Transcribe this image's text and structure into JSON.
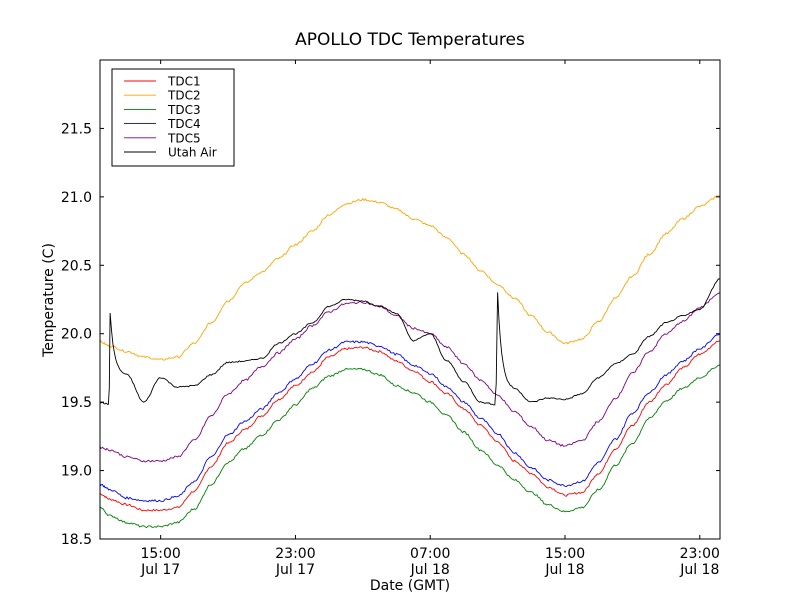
{
  "chart_data": {
    "type": "line",
    "title": "APOLLO TDC Temperatures",
    "xlabel": "Date (GMT)",
    "ylabel": "Temperature (C)",
    "x_unit": "hours since 15:00 Jul 17 (GMT)",
    "xlim": [
      -3.6,
      33.2
    ],
    "ylim": [
      18.5,
      22.0
    ],
    "yticks": [
      18.5,
      19.0,
      19.5,
      20.0,
      20.5,
      21.0,
      21.5
    ],
    "ytick_labels": [
      "18.5",
      "19.0",
      "19.5",
      "20.0",
      "20.5",
      "21.0",
      "21.5"
    ],
    "xticks": [
      0,
      8,
      16,
      24,
      32
    ],
    "xtick_labels": [
      [
        "15:00",
        "Jul 17"
      ],
      [
        "23:00",
        "Jul 17"
      ],
      [
        "07:00",
        "Jul 18"
      ],
      [
        "15:00",
        "Jul 18"
      ],
      [
        "23:00",
        "Jul 18"
      ]
    ],
    "grid": false,
    "legend_position": "top-left",
    "x": [
      -3.6,
      -3,
      -2,
      -1,
      0,
      1,
      2,
      3,
      4,
      5,
      6,
      7,
      8,
      9,
      10,
      11,
      12,
      13,
      14,
      15,
      16,
      17,
      18,
      19,
      20,
      21,
      22,
      23,
      24,
      25,
      26,
      27,
      28,
      29,
      30,
      31,
      32,
      33.2
    ],
    "series": [
      {
        "name": "TDC1",
        "color": "#ff0000",
        "values": [
          18.83,
          18.79,
          18.75,
          18.71,
          18.71,
          18.73,
          18.85,
          19.03,
          19.2,
          19.3,
          19.4,
          19.52,
          19.62,
          19.72,
          19.83,
          19.89,
          19.9,
          19.87,
          19.8,
          19.73,
          19.65,
          19.56,
          19.45,
          19.33,
          19.21,
          19.07,
          18.98,
          18.88,
          18.82,
          18.84,
          18.98,
          19.16,
          19.33,
          19.5,
          19.63,
          19.75,
          19.85,
          19.95
        ]
      },
      {
        "name": "TDC2",
        "color": "#ffa500",
        "values": [
          19.94,
          19.91,
          19.87,
          19.83,
          19.81,
          19.83,
          19.93,
          20.08,
          20.24,
          20.37,
          20.45,
          20.55,
          20.65,
          20.75,
          20.87,
          20.95,
          20.98,
          20.96,
          20.91,
          20.84,
          20.79,
          20.7,
          20.58,
          20.46,
          20.36,
          20.26,
          20.13,
          20.01,
          19.93,
          19.96,
          20.09,
          20.26,
          20.42,
          20.58,
          20.73,
          20.84,
          20.93,
          21.01
        ]
      },
      {
        "name": "TDC3",
        "color": "#008000",
        "values": [
          18.73,
          18.67,
          18.62,
          18.59,
          18.59,
          18.62,
          18.72,
          18.9,
          19.06,
          19.16,
          19.26,
          19.37,
          19.48,
          19.6,
          19.69,
          19.74,
          19.74,
          19.7,
          19.62,
          19.57,
          19.5,
          19.4,
          19.28,
          19.15,
          19.04,
          18.93,
          18.84,
          18.75,
          18.7,
          18.73,
          18.86,
          19.04,
          19.2,
          19.38,
          19.51,
          19.6,
          19.68,
          19.77
        ]
      },
      {
        "name": "TDC4",
        "color": "#0000ff",
        "values": [
          18.9,
          18.86,
          18.8,
          18.78,
          18.78,
          18.81,
          18.92,
          19.1,
          19.26,
          19.36,
          19.45,
          19.57,
          19.67,
          19.78,
          19.88,
          19.94,
          19.94,
          19.91,
          19.85,
          19.77,
          19.71,
          19.61,
          19.5,
          19.38,
          19.27,
          19.13,
          19.02,
          18.93,
          18.89,
          18.92,
          19.06,
          19.23,
          19.42,
          19.57,
          19.7,
          19.8,
          19.89,
          20.0
        ]
      },
      {
        "name": "TDC5",
        "color": "#800080",
        "values": [
          19.17,
          19.15,
          19.1,
          19.07,
          19.07,
          19.1,
          19.22,
          19.4,
          19.56,
          19.66,
          19.76,
          19.86,
          19.96,
          20.06,
          20.16,
          20.22,
          20.23,
          20.2,
          20.13,
          20.04,
          20.0,
          19.9,
          19.78,
          19.66,
          19.55,
          19.43,
          19.32,
          19.22,
          19.18,
          19.22,
          19.36,
          19.53,
          19.71,
          19.87,
          20.0,
          20.09,
          20.19,
          20.3
        ]
      },
      {
        "name": "Utah Air",
        "color": "#000000",
        "values": [
          19.5,
          20.15,
          19.7,
          19.5,
          19.68,
          19.61,
          19.62,
          19.7,
          19.79,
          19.8,
          19.82,
          19.93,
          20.0,
          20.08,
          20.2,
          20.25,
          20.24,
          20.2,
          20.15,
          19.95,
          20.0,
          19.8,
          19.65,
          19.5,
          20.3,
          19.6,
          19.5,
          19.53,
          19.52,
          19.56,
          19.68,
          19.78,
          19.85,
          19.98,
          20.08,
          20.13,
          20.18,
          20.4
        ]
      }
    ],
    "legend": [
      "TDC1",
      "TDC2",
      "TDC3",
      "TDC4",
      "TDC5",
      "Utah Air"
    ]
  }
}
